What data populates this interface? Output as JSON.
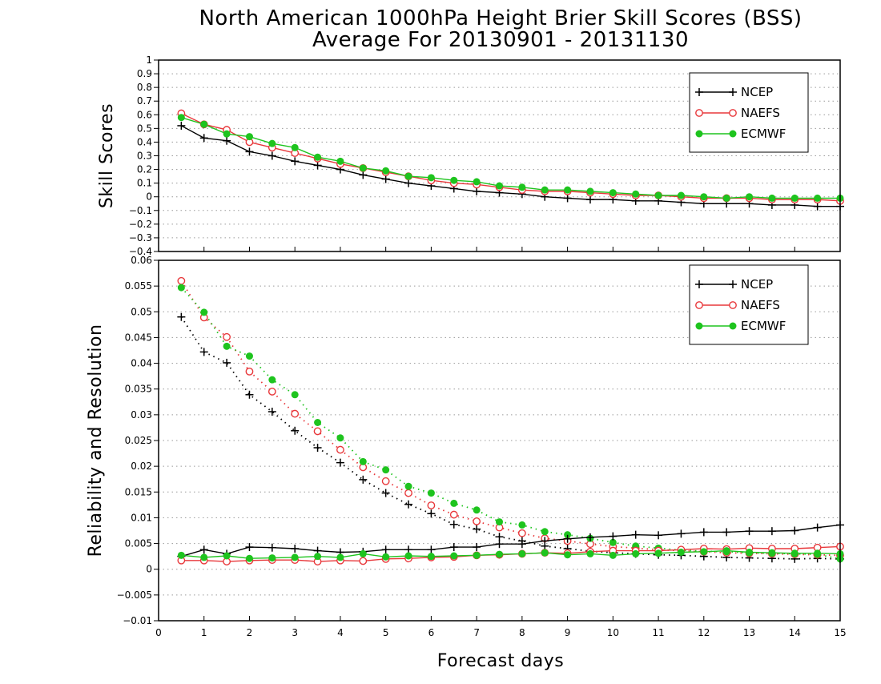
{
  "title_line1": "North American 1000hPa Height Brier Skill Scores (BSS)",
  "title_line2": "Average For 20130901 - 20131130",
  "xlabel": "Forecast days",
  "colors": {
    "NCEP": "#000000",
    "NAEFS": "#e8383b",
    "ECMWF": "#1ec41e"
  },
  "chart_data": [
    {
      "type": "line",
      "ylabel": "Skill Scores",
      "xlim": [
        0,
        15
      ],
      "ylim": [
        -0.4,
        1
      ],
      "ytick_step": 0.1,
      "ytick_labels": [
        "−0.4",
        "−0.3",
        "−0.2",
        "−0.1",
        "0",
        "0.1",
        "0.2",
        "0.3",
        "0.4",
        "0.5",
        "0.6",
        "0.7",
        "0.8",
        "0.9",
        "1"
      ],
      "xtick_labels": [
        "0",
        "1",
        "2",
        "3",
        "4",
        "5",
        "6",
        "7",
        "8",
        "9",
        "10",
        "11",
        "12",
        "13",
        "14",
        "15"
      ],
      "grid": "horizontal dotted",
      "legend_position": "top-right",
      "x": [
        0.5,
        1,
        1.5,
        2,
        2.5,
        3,
        3.5,
        4,
        4.5,
        5,
        5.5,
        6,
        6.5,
        7,
        7.5,
        8,
        8.5,
        9,
        9.5,
        10,
        10.5,
        11,
        11.5,
        12,
        12.5,
        13,
        13.5,
        14,
        14.5,
        15
      ],
      "series": [
        {
          "name": "NCEP",
          "marker": "plus",
          "line": "solid",
          "values": [
            0.52,
            0.43,
            0.41,
            0.33,
            0.3,
            0.26,
            0.23,
            0.2,
            0.16,
            0.13,
            0.1,
            0.08,
            0.06,
            0.04,
            0.03,
            0.02,
            0.0,
            -0.01,
            -0.02,
            -0.02,
            -0.03,
            -0.03,
            -0.04,
            -0.05,
            -0.05,
            -0.05,
            -0.06,
            -0.06,
            -0.07,
            -0.07
          ]
        },
        {
          "name": "NAEFS",
          "marker": "open-circle",
          "line": "solid",
          "values": [
            0.61,
            0.53,
            0.49,
            0.4,
            0.36,
            0.32,
            0.28,
            0.24,
            0.21,
            0.18,
            0.15,
            0.12,
            0.1,
            0.09,
            0.07,
            0.05,
            0.04,
            0.04,
            0.03,
            0.02,
            0.01,
            0.01,
            0.0,
            -0.01,
            -0.01,
            -0.01,
            -0.02,
            -0.02,
            -0.02,
            -0.03
          ]
        },
        {
          "name": "ECMWF",
          "marker": "filled-circle",
          "line": "solid",
          "values": [
            0.58,
            0.53,
            0.46,
            0.44,
            0.39,
            0.36,
            0.29,
            0.26,
            0.21,
            0.19,
            0.15,
            0.14,
            0.12,
            0.11,
            0.08,
            0.07,
            0.05,
            0.05,
            0.04,
            0.03,
            0.02,
            0.01,
            0.01,
            0.0,
            -0.01,
            0.0,
            -0.01,
            -0.01,
            -0.01,
            -0.01
          ]
        }
      ]
    },
    {
      "type": "line",
      "ylabel": "Reliability and Resolution",
      "xlim": [
        0,
        15
      ],
      "ylim": [
        -0.01,
        0.06
      ],
      "ytick_step": 0.005,
      "ytick_labels": [
        "−0.01",
        "−0.005",
        "0",
        "0.005",
        "0.01",
        "0.015",
        "0.02",
        "0.025",
        "0.03",
        "0.035",
        "0.04",
        "0.045",
        "0.05",
        "0.055",
        "0.06"
      ],
      "xtick_labels": [
        "0",
        "1",
        "2",
        "3",
        "4",
        "5",
        "6",
        "7",
        "8",
        "9",
        "10",
        "11",
        "12",
        "13",
        "14",
        "15"
      ],
      "grid": "horizontal dotted",
      "legend_position": "top-right",
      "x": [
        0.5,
        1,
        1.5,
        2,
        2.5,
        3,
        3.5,
        4,
        4.5,
        5,
        5.5,
        6,
        6.5,
        7,
        7.5,
        8,
        8.5,
        9,
        9.5,
        10,
        10.5,
        11,
        11.5,
        12,
        12.5,
        13,
        13.5,
        14,
        14.5,
        15
      ],
      "series": [
        {
          "name": "NCEP",
          "group": "resolution",
          "marker": "plus",
          "line": "dotted",
          "values": [
            0.049,
            0.0422,
            0.0401,
            0.0339,
            0.0306,
            0.0269,
            0.0236,
            0.0207,
            0.0174,
            0.0148,
            0.0126,
            0.0108,
            0.0087,
            0.0078,
            0.0063,
            0.0055,
            0.0045,
            0.004,
            0.0035,
            0.0032,
            0.003,
            0.0028,
            0.0027,
            0.0025,
            0.0023,
            0.0022,
            0.0021,
            0.002,
            0.0021,
            0.002
          ]
        },
        {
          "name": "NAEFS",
          "group": "resolution",
          "marker": "open-circle",
          "line": "dotted",
          "values": [
            0.056,
            0.0489,
            0.0451,
            0.0384,
            0.0345,
            0.0302,
            0.0268,
            0.0232,
            0.0198,
            0.0171,
            0.0148,
            0.0124,
            0.0106,
            0.0093,
            0.0081,
            0.007,
            0.006,
            0.0055,
            0.0049,
            0.0044,
            0.0041,
            0.0038,
            0.0036,
            0.0034,
            0.0032,
            0.0031,
            0.003,
            0.0029,
            0.0028,
            0.0027
          ]
        },
        {
          "name": "ECMWF",
          "group": "resolution",
          "marker": "filled-circle",
          "line": "dotted",
          "values": [
            0.0547,
            0.0499,
            0.0433,
            0.0414,
            0.0368,
            0.0339,
            0.0285,
            0.0255,
            0.0209,
            0.0193,
            0.0161,
            0.0148,
            0.0128,
            0.0115,
            0.0092,
            0.0086,
            0.0073,
            0.0067,
            0.006,
            0.0052,
            0.0045,
            0.0041,
            0.0037,
            0.0035,
            0.0034,
            0.0032,
            0.0031,
            0.003,
            0.0029,
            0.002
          ]
        },
        {
          "name": "NCEP",
          "group": "reliability",
          "marker": "plus",
          "line": "solid",
          "values": [
            0.0025,
            0.0038,
            0.003,
            0.0043,
            0.0042,
            0.004,
            0.0036,
            0.0033,
            0.0034,
            0.0038,
            0.0038,
            0.0038,
            0.0043,
            0.0043,
            0.0049,
            0.0049,
            0.0055,
            0.0059,
            0.0062,
            0.0064,
            0.0067,
            0.0066,
            0.0069,
            0.0072,
            0.0072,
            0.0074,
            0.0074,
            0.0075,
            0.0081,
            0.0086
          ]
        },
        {
          "name": "NAEFS",
          "group": "reliability",
          "marker": "open-circle",
          "line": "solid",
          "values": [
            0.0017,
            0.0017,
            0.0015,
            0.0017,
            0.0018,
            0.0018,
            0.0015,
            0.0017,
            0.0016,
            0.002,
            0.0021,
            0.0023,
            0.0024,
            0.0027,
            0.0028,
            0.003,
            0.0032,
            0.0031,
            0.0034,
            0.0036,
            0.0036,
            0.0036,
            0.0038,
            0.004,
            0.0039,
            0.0041,
            0.004,
            0.004,
            0.0042,
            0.0044
          ]
        },
        {
          "name": "ECMWF",
          "group": "reliability",
          "marker": "filled-circle",
          "line": "solid",
          "values": [
            0.0027,
            0.0023,
            0.0026,
            0.0021,
            0.0022,
            0.0023,
            0.0025,
            0.0023,
            0.003,
            0.0024,
            0.0026,
            0.0025,
            0.0026,
            0.0027,
            0.0029,
            0.003,
            0.0032,
            0.0028,
            0.003,
            0.0027,
            0.003,
            0.0031,
            0.0033,
            0.0034,
            0.0036,
            0.0033,
            0.0032,
            0.0031,
            0.0031,
            0.003
          ]
        }
      ]
    }
  ]
}
